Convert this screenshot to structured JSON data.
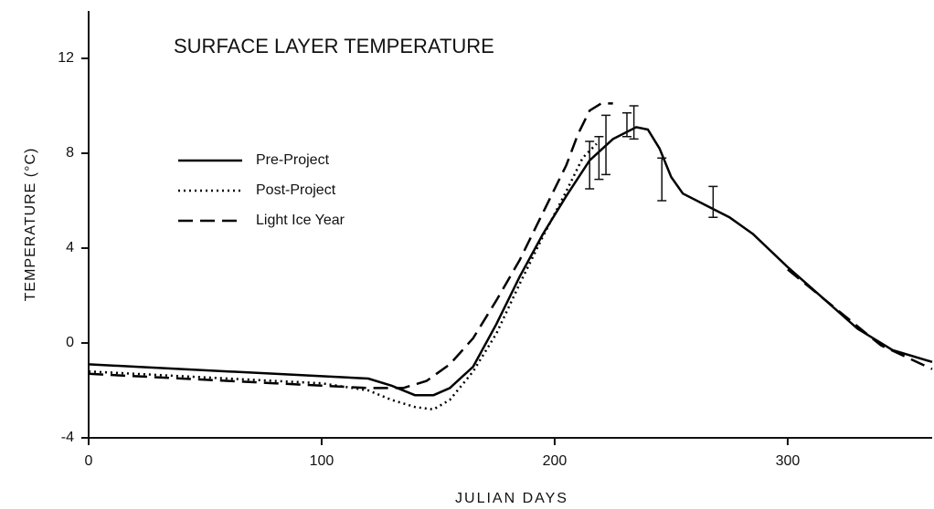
{
  "chart_data": {
    "type": "line",
    "title": "SURFACE LAYER TEMPERATURE",
    "xlabel": "JULIAN DAYS",
    "ylabel": "TEMPERATURE (°C)",
    "xlim": [
      0,
      362
    ],
    "xticks": [
      0,
      100,
      200,
      300
    ],
    "ylim": [
      -4,
      14
    ],
    "yticks": [
      -4,
      0,
      4,
      8,
      12
    ],
    "grid": false,
    "legend": "upper left",
    "series": [
      {
        "name": "Pre-Project",
        "color": "#000000",
        "style": "solid",
        "x": [
          0,
          20,
          40,
          60,
          80,
          100,
          120,
          130,
          140,
          148,
          155,
          165,
          175,
          185,
          195,
          205,
          215,
          225,
          235,
          240,
          245,
          250,
          255,
          265,
          275,
          285,
          300,
          315,
          330,
          345,
          362
        ],
        "values": [
          -0.9,
          -1.0,
          -1.1,
          -1.2,
          -1.3,
          -1.4,
          -1.5,
          -1.8,
          -2.2,
          -2.2,
          -1.9,
          -1.0,
          0.8,
          2.8,
          4.6,
          6.2,
          7.7,
          8.6,
          9.1,
          9.0,
          8.2,
          7.0,
          6.3,
          5.8,
          5.3,
          4.6,
          3.2,
          1.9,
          0.6,
          -0.3,
          -0.8
        ]
      },
      {
        "name": "Post-Project",
        "color": "#000000",
        "style": "dotted",
        "x": [
          0,
          40,
          80,
          100,
          120,
          130,
          140,
          148,
          155,
          165,
          175,
          185,
          195,
          205,
          212,
          218
        ],
        "values": [
          -1.2,
          -1.4,
          -1.6,
          -1.7,
          -2.0,
          -2.4,
          -2.7,
          -2.8,
          -2.4,
          -1.2,
          0.4,
          2.5,
          4.5,
          6.4,
          7.8,
          8.4
        ]
      },
      {
        "name": "Light Ice Year",
        "color": "#000000",
        "style": "dashed",
        "x": [
          0,
          40,
          80,
          100,
          120,
          135,
          145,
          155,
          165,
          175,
          185,
          195,
          205,
          210,
          215,
          220,
          225,
          260,
          300,
          320,
          340,
          362
        ],
        "values": [
          -1.3,
          -1.5,
          -1.7,
          -1.8,
          -1.9,
          -1.9,
          -1.6,
          -0.9,
          0.2,
          1.8,
          3.5,
          5.5,
          7.5,
          8.8,
          9.8,
          10.1,
          10.1,
          null,
          3.1,
          1.5,
          -0.1,
          -1.1
        ]
      }
    ],
    "error_bars": {
      "x": [
        215,
        219,
        222,
        231,
        234,
        246,
        268
      ],
      "values": [
        7.5,
        7.8,
        8.35,
        9.2,
        9.3,
        6.9,
        5.95
      ],
      "errors": [
        1.0,
        0.9,
        1.25,
        0.5,
        0.7,
        0.9,
        0.65
      ]
    }
  }
}
